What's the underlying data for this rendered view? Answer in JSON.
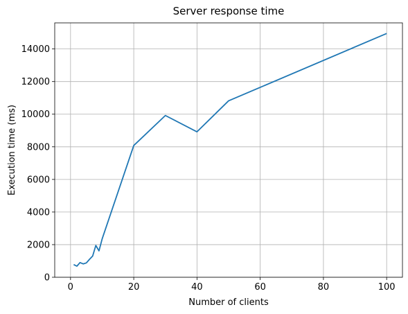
{
  "chart_data": {
    "type": "line",
    "title": "Server response time",
    "xlabel": "Number of clients",
    "ylabel": "Execution time (ms)",
    "xlim": [
      -5,
      105
    ],
    "ylim": [
      0,
      15600
    ],
    "xticks": [
      0,
      20,
      40,
      60,
      80,
      100
    ],
    "yticks": [
      0,
      2000,
      4000,
      6000,
      8000,
      10000,
      12000,
      14000
    ],
    "grid": true,
    "series": [
      {
        "color": "#1f77b4",
        "x": [
          1,
          2,
          3,
          4,
          5,
          6,
          7,
          8,
          9,
          10,
          20,
          30,
          40,
          50,
          100
        ],
        "y": [
          780,
          680,
          900,
          820,
          880,
          1100,
          1300,
          1950,
          1620,
          2350,
          8080,
          9920,
          8920,
          10820,
          14950
        ]
      }
    ]
  }
}
